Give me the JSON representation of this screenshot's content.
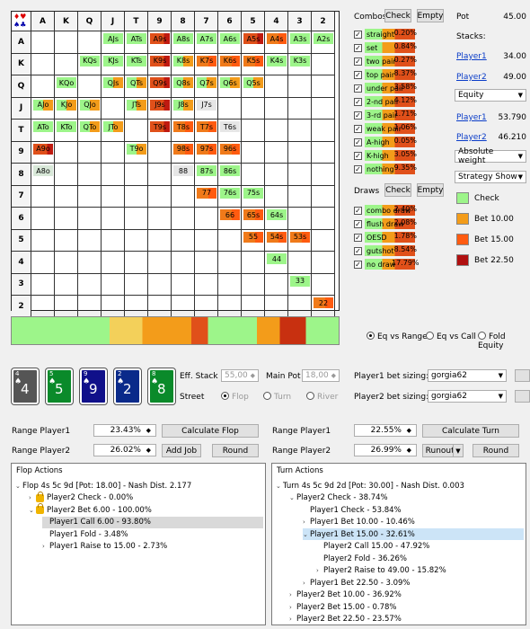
{
  "grid": {
    "col_headers": [
      "A",
      "K",
      "Q",
      "J",
      "T",
      "9",
      "8",
      "7",
      "6",
      "5",
      "4",
      "3",
      "2"
    ],
    "row_headers": [
      "A",
      "K",
      "Q",
      "J",
      "T",
      "9",
      "8",
      "7",
      "6",
      "5",
      "4",
      "3",
      "2"
    ],
    "cells": [
      {
        "r": 0,
        "c": 3,
        "t": "AJs",
        "k": "green"
      },
      {
        "r": 0,
        "c": 4,
        "t": "ATs",
        "k": "green"
      },
      {
        "r": 0,
        "c": 5,
        "t": "A9s",
        "k": "red"
      },
      {
        "r": 0,
        "c": 6,
        "t": "A8s",
        "k": "green"
      },
      {
        "r": 0,
        "c": 7,
        "t": "A7s",
        "k": "green"
      },
      {
        "r": 0,
        "c": 8,
        "t": "A6s",
        "k": "green"
      },
      {
        "r": 0,
        "c": 9,
        "t": "A5s",
        "k": "red"
      },
      {
        "r": 0,
        "c": 10,
        "t": "A4s",
        "k": "orange"
      },
      {
        "r": 0,
        "c": 11,
        "t": "A3s",
        "k": "green"
      },
      {
        "r": 0,
        "c": 12,
        "t": "A2s",
        "k": "green"
      },
      {
        "r": 1,
        "c": 2,
        "t": "KQs",
        "k": "green"
      },
      {
        "r": 1,
        "c": 3,
        "t": "KJs",
        "k": "green"
      },
      {
        "r": 1,
        "c": 4,
        "t": "KTs",
        "k": "green"
      },
      {
        "r": 1,
        "c": 5,
        "t": "K9s",
        "k": "red"
      },
      {
        "r": 1,
        "c": 6,
        "t": "K8s",
        "k": "mix"
      },
      {
        "r": 1,
        "c": 7,
        "t": "K7s",
        "k": "orange"
      },
      {
        "r": 1,
        "c": 8,
        "t": "K6s",
        "k": "orange"
      },
      {
        "r": 1,
        "c": 9,
        "t": "K5s",
        "k": "orange"
      },
      {
        "r": 1,
        "c": 10,
        "t": "K4s",
        "k": "green"
      },
      {
        "r": 1,
        "c": 11,
        "t": "K3s",
        "k": "green"
      },
      {
        "r": 2,
        "c": 1,
        "t": "KQo",
        "k": "green"
      },
      {
        "r": 2,
        "c": 3,
        "t": "QJs",
        "k": "mix"
      },
      {
        "r": 2,
        "c": 4,
        "t": "QTs",
        "k": "mix"
      },
      {
        "r": 2,
        "c": 5,
        "t": "Q9s",
        "k": "red"
      },
      {
        "r": 2,
        "c": 6,
        "t": "Q8s",
        "k": "mix"
      },
      {
        "r": 2,
        "c": 7,
        "t": "Q7s",
        "k": "mix"
      },
      {
        "r": 2,
        "c": 8,
        "t": "Q6s",
        "k": "mix"
      },
      {
        "r": 2,
        "c": 9,
        "t": "Q5s",
        "k": "mix"
      },
      {
        "r": 3,
        "c": 0,
        "t": "AJo",
        "k": "mix"
      },
      {
        "r": 3,
        "c": 1,
        "t": "KJo",
        "k": "mix"
      },
      {
        "r": 3,
        "c": 2,
        "t": "QJo",
        "k": "mix"
      },
      {
        "r": 3,
        "c": 4,
        "t": "JTs",
        "k": "mix"
      },
      {
        "r": 3,
        "c": 5,
        "t": "J9s",
        "k": "red"
      },
      {
        "r": 3,
        "c": 6,
        "t": "J8s",
        "k": "mix"
      },
      {
        "r": 3,
        "c": 7,
        "t": "J7s",
        "k": "grey"
      },
      {
        "r": 4,
        "c": 0,
        "t": "ATo",
        "k": "green"
      },
      {
        "r": 4,
        "c": 1,
        "t": "KTo",
        "k": "green"
      },
      {
        "r": 4,
        "c": 2,
        "t": "QTo",
        "k": "mix"
      },
      {
        "r": 4,
        "c": 3,
        "t": "JTo",
        "k": "mix"
      },
      {
        "r": 4,
        "c": 5,
        "t": "T9s",
        "k": "red"
      },
      {
        "r": 4,
        "c": 6,
        "t": "T8s",
        "k": "orange"
      },
      {
        "r": 4,
        "c": 7,
        "t": "T7s",
        "k": "orange"
      },
      {
        "r": 4,
        "c": 8,
        "t": "T6s",
        "k": "grey"
      },
      {
        "r": 5,
        "c": 0,
        "t": "A9o",
        "k": "red"
      },
      {
        "r": 5,
        "c": 4,
        "t": "T9o",
        "k": "mix"
      },
      {
        "r": 5,
        "c": 6,
        "t": "98s",
        "k": "orange"
      },
      {
        "r": 5,
        "c": 7,
        "t": "97s",
        "k": "orange"
      },
      {
        "r": 5,
        "c": 8,
        "t": "96s",
        "k": "orange"
      },
      {
        "r": 6,
        "c": 0,
        "t": "A8o",
        "k": "pale"
      },
      {
        "r": 6,
        "c": 6,
        "t": "88",
        "k": "grey"
      },
      {
        "r": 6,
        "c": 7,
        "t": "87s",
        "k": "green"
      },
      {
        "r": 6,
        "c": 8,
        "t": "86s",
        "k": "green"
      },
      {
        "r": 7,
        "c": 7,
        "t": "77",
        "k": "orange"
      },
      {
        "r": 7,
        "c": 8,
        "t": "76s",
        "k": "green"
      },
      {
        "r": 7,
        "c": 9,
        "t": "75s",
        "k": "green"
      },
      {
        "r": 8,
        "c": 8,
        "t": "66",
        "k": "orange"
      },
      {
        "r": 8,
        "c": 9,
        "t": "65s",
        "k": "orange"
      },
      {
        "r": 8,
        "c": 10,
        "t": "64s",
        "k": "green"
      },
      {
        "r": 9,
        "c": 9,
        "t": "55",
        "k": "orange"
      },
      {
        "r": 9,
        "c": 10,
        "t": "54s",
        "k": "orange"
      },
      {
        "r": 9,
        "c": 11,
        "t": "53s",
        "k": "orange"
      },
      {
        "r": 10,
        "c": 10,
        "t": "44",
        "k": "green"
      },
      {
        "r": 11,
        "c": 11,
        "t": "33",
        "k": "green"
      },
      {
        "r": 12,
        "c": 12,
        "t": "22",
        "k": "orange"
      }
    ]
  },
  "combos": {
    "title": "Combos",
    "check_label": "Check",
    "empty_label": "Empty",
    "items": [
      {
        "label": "straight",
        "pct": "0.20%"
      },
      {
        "label": "set",
        "pct": "0.84%"
      },
      {
        "label": "two pair",
        "pct": "0.27%"
      },
      {
        "label": "top pair",
        "pct": "8.37%"
      },
      {
        "label": "under pair",
        "pct": "3.58%"
      },
      {
        "label": "2-nd pair",
        "pct": "4.12%"
      },
      {
        "label": "3-rd pair",
        "pct": "1.71%"
      },
      {
        "label": "weak pair",
        "pct": "1.06%"
      },
      {
        "label": "A-high",
        "pct": "0.05%"
      },
      {
        "label": "K-high",
        "pct": "3.05%"
      },
      {
        "label": "nothing",
        "pct": "9.35%"
      }
    ]
  },
  "draws": {
    "title": "Draws",
    "check_label": "Check",
    "empty_label": "Empty",
    "items": [
      {
        "label": "combo draw",
        "pct": "2.40%"
      },
      {
        "label": "flush draw",
        "pct": "2.08%"
      },
      {
        "label": "OESD",
        "pct": "1.78%"
      },
      {
        "label": "gutshot",
        "pct": "8.54%"
      },
      {
        "label": "no draw",
        "pct": "17.79%"
      }
    ]
  },
  "info": {
    "pot_label": "Pot",
    "pot_value": "45.00",
    "stacks_label": "Stacks:",
    "player1": "Player1",
    "player2": "Player2",
    "stack1": "34.00",
    "stack2": "49.00",
    "mode_select": "Equity",
    "eq1": "53.790",
    "eq2": "46.210",
    "weight_select": "Absolute weight",
    "strategy_select": "Strategy Show"
  },
  "legend": [
    {
      "label": "Check",
      "color": "#9df58a"
    },
    {
      "label": "Bet 10.00",
      "color": "#f39c1a"
    },
    {
      "label": "Bet 15.00",
      "color": "#ff5b10"
    },
    {
      "label": "Bet 22.50",
      "color": "#b01010"
    }
  ],
  "eq_radio": {
    "opt1": "Eq vs Range",
    "opt2": "Eq vs Call",
    "opt3": "Fold Equity"
  },
  "cards": [
    {
      "rank": "4",
      "bg": "#555555"
    },
    {
      "rank": "5",
      "bg": "#0a8a2a"
    },
    {
      "rank": "9",
      "bg": "#10108a"
    },
    {
      "rank": "2",
      "bg": "#0a2a8a"
    },
    {
      "rank": "8",
      "bg": "#0a8a2a"
    }
  ],
  "stacks_row": {
    "eff_label": "Eff. Stack",
    "eff_value": "55,00",
    "main_label": "Main Pot",
    "main_value": "18,00",
    "street_label": "Street",
    "street_flop": "Flop",
    "street_turn": "Turn",
    "street_river": "River",
    "p1_sizing_label": "Player1 bet sizing:",
    "p2_sizing_label": "Player2 bet sizing:",
    "p1_sizing": "gorgia62",
    "p2_sizing": "gorgia62"
  },
  "range_left": {
    "p1_label": "Range Player1",
    "p1_value": "23.43%",
    "p2_label": "Range Player2",
    "p2_value": "26.02%",
    "calc_btn": "Calculate Flop",
    "addjob_btn": "Add Job",
    "round_btn": "Round"
  },
  "range_right": {
    "p1_label": "Range Player1",
    "p1_value": "22.55%",
    "p2_label": "Range Player2",
    "p2_value": "26.99%",
    "calc_btn": "Calculate Turn",
    "runouts_btn": "Runouts",
    "round_btn": "Round"
  },
  "flop_actions": {
    "title": "Flop Actions",
    "lines": [
      {
        "text": "Flop 4s 5c 9d [Pot: 18.00] - Nash Dist. 2.177",
        "exp": "v",
        "lock": false,
        "indent": 0
      },
      {
        "text": "Player2 Check - 0.00%",
        "exp": ">",
        "lock": true,
        "indent": 1
      },
      {
        "text": "Player2 Bet 6.00 - 100.00%",
        "exp": "v",
        "lock": true,
        "indent": 1
      },
      {
        "text": "Player1 Call 6.00 - 93.80%",
        "exp": "",
        "lock": false,
        "indent": 2,
        "sel": "grey"
      },
      {
        "text": "Player1 Fold - 3.48%",
        "exp": "",
        "lock": false,
        "indent": 2
      },
      {
        "text": "Player1 Raise to 15.00 - 2.73%",
        "exp": ">",
        "lock": false,
        "indent": 2
      }
    ]
  },
  "turn_actions": {
    "title": "Turn Actions",
    "lines": [
      {
        "text": "Turn 4s 5c 9d 2d [Pot: 30.00] - Nash Dist. 0.003",
        "exp": "v",
        "indent": 0
      },
      {
        "text": "Player2 Check - 38.74%",
        "exp": "v",
        "indent": 1
      },
      {
        "text": "Player1 Check - 53.84%",
        "exp": "",
        "indent": 2
      },
      {
        "text": "Player1 Bet 10.00 - 10.46%",
        "exp": ">",
        "indent": 2
      },
      {
        "text": "Player1 Bet 15.00 - 32.61%",
        "exp": "v",
        "indent": 2,
        "sel": "blue"
      },
      {
        "text": "Player2 Call 15.00 - 47.92%",
        "exp": "",
        "indent": 3
      },
      {
        "text": "Player2 Fold - 36.26%",
        "exp": "",
        "indent": 3
      },
      {
        "text": "Player2 Raise to 49.00 - 15.82%",
        "exp": ">",
        "indent": 3
      },
      {
        "text": "Player1 Bet 22.50 - 3.09%",
        "exp": ">",
        "indent": 2
      },
      {
        "text": "Player2 Bet 10.00 - 36.92%",
        "exp": ">",
        "indent": 1
      },
      {
        "text": "Player2 Bet 15.00 - 0.78%",
        "exp": ">",
        "indent": 1
      },
      {
        "text": "Player2 Bet 22.50 - 23.57%",
        "exp": ">",
        "indent": 1
      }
    ]
  }
}
